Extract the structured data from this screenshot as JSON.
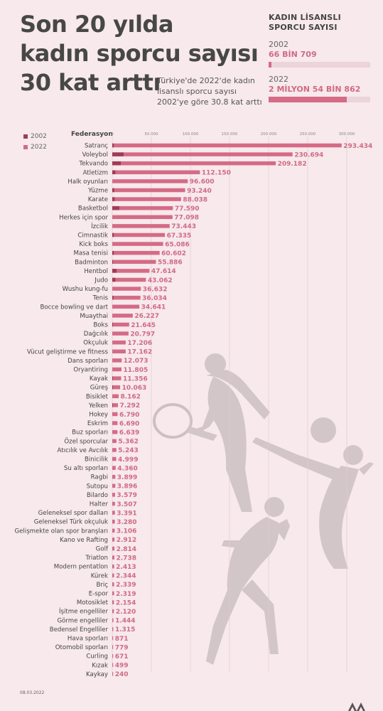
{
  "title_lines": [
    "Son 20 yılda",
    "kadın sporcu sayısı",
    "30 kat arttı"
  ],
  "subtitle": "Türkiye'de 2022'de kadın lisanslı sporcu sayısı 2002'ye göre 30.8 kat arttı",
  "stats": {
    "header": "KADIN LİSANSLI SPORCU SAYISI",
    "year_2002": "2002",
    "value_2002": "66 BİN 709",
    "year_2022": "2022",
    "value_2022": "2 MİLYON 54 BİN 862"
  },
  "legend": {
    "label_2002": "2002",
    "label_2022": "2022"
  },
  "category_header": "Federasyon",
  "footer_date": "08.03.2022",
  "colors": {
    "bar_2022": "#d56b86",
    "bar_2002": "#9e3c58",
    "value_text": "#d06a84",
    "background": "#f7e9ec"
  },
  "chart_data": {
    "type": "bar",
    "orientation": "horizontal",
    "ticks": [
      "0",
      "50.000",
      "100.000",
      "150.000",
      "200.000",
      "250.000",
      "300.000"
    ],
    "xlim": [
      0,
      300000
    ],
    "grid": true,
    "categories": [
      "Satranç",
      "Voleybol",
      "Tekvando",
      "Atletizm",
      "Halk oyunları",
      "Yüzme",
      "Karate",
      "Basketbol",
      "Herkes için spor",
      "İzcilik",
      "Cimnastik",
      "Kick boks",
      "Masa tenisi",
      "Badminton",
      "Hentbol",
      "Judo",
      "Wushu kung-fu",
      "Tenis",
      "Bocce bowling ve dart",
      "Muaythai",
      "Boks",
      "Dağcılık",
      "Okçuluk",
      "Vücut geliştirme ve fitness",
      "Dans sporları",
      "Oryantiring",
      "Kayak",
      "Güreş",
      "Bisiklet",
      "Yelken",
      "Hokey",
      "Eskrim",
      "Buz sporları",
      "Özel sporcular",
      "Atıcılık ve Avcılık",
      "Binicilik",
      "Su altı sporları",
      "Ragbi",
      "Sutopu",
      "Bilardo",
      "Halter",
      "Geleneksel spor dalları",
      "Geleneksel Türk okçuluk",
      "Gelişmekte olan spor branşları",
      "Kano ve Rafting",
      "Golf",
      "Triatlon",
      "Modern pentatlon",
      "Kürek",
      "Briç",
      "E-spor",
      "Motosiklet",
      "İşitme engelliler",
      "Görme engelliler",
      "Bedensel Engelliler",
      "Hava sporları",
      "Otomobil sporları",
      "Curling",
      "Kızak",
      "Kaykay"
    ],
    "series": [
      {
        "name": "2002",
        "values": [
          2000,
          14500,
          11000,
          4000,
          0,
          2500,
          3000,
          9000,
          0,
          0,
          2000,
          0,
          2000,
          1000,
          5500,
          4000,
          0,
          1500,
          0,
          0,
          1000,
          0,
          0,
          0,
          0,
          0,
          500,
          1000,
          0,
          500,
          0,
          0,
          0,
          0,
          0,
          0,
          0,
          0,
          0,
          0,
          0,
          0,
          0,
          0,
          0,
          0,
          0,
          0,
          0,
          0,
          0,
          0,
          0,
          0,
          0,
          0,
          0,
          0,
          0,
          0
        ]
      },
      {
        "name": "2022",
        "values": [
          293434,
          230694,
          209182,
          112150,
          96600,
          93240,
          88038,
          77590,
          77098,
          73443,
          67335,
          65086,
          60602,
          55886,
          47614,
          43062,
          36632,
          36034,
          34641,
          26227,
          21645,
          20797,
          17206,
          17162,
          12073,
          11805,
          11356,
          10063,
          8162,
          7292,
          6790,
          6690,
          6639,
          5362,
          5243,
          4999,
          4360,
          3899,
          3896,
          3579,
          3507,
          3391,
          3280,
          3106,
          2912,
          2814,
          2738,
          2413,
          2344,
          2339,
          2319,
          2154,
          2120,
          1444,
          1315,
          871,
          779,
          671,
          499,
          240
        ]
      }
    ],
    "value_labels": [
      "293.434",
      "230.694",
      "209.182",
      "112.150",
      "96.600",
      "93.240",
      "88.038",
      "77.590",
      "77.098",
      "73.443",
      "67.335",
      "65.086",
      "60.602",
      "55.886",
      "47.614",
      "43.062",
      "36.632",
      "36.034",
      "34.641",
      "26.227",
      "21.645",
      "20.797",
      "17.206",
      "17.162",
      "12.073",
      "11.805",
      "11.356",
      "10.063",
      "8.162",
      "7.292",
      "6.790",
      "6.690",
      "6.639",
      "5.362",
      "5.243",
      "4.999",
      "4.360",
      "3.899",
      "3.896",
      "3.579",
      "3.507",
      "3.391",
      "3.280",
      "3.106",
      "2.912",
      "2.814",
      "2.738",
      "2.413",
      "2.344",
      "2.339",
      "2.319",
      "2.154",
      "2.120",
      "1.444",
      "1.315",
      "871",
      "779",
      "671",
      "499",
      "240"
    ]
  }
}
